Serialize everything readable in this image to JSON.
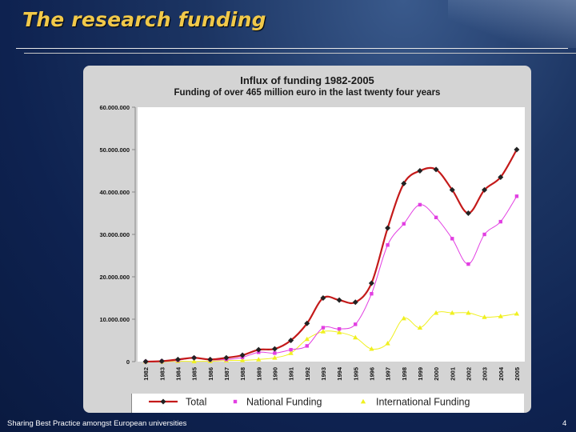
{
  "slide": {
    "title": "The research funding",
    "footer_text": "Sharing Best Practice amongst European universities",
    "page_number": "4"
  },
  "colors": {
    "title": "#f1c94a",
    "total": "#c41a1a",
    "national": "#e23fe2",
    "international": "#f0f020",
    "marker_total": "#222222"
  },
  "chart_data": {
    "type": "line",
    "title": "Influx of funding 1982-2005",
    "subtitle": "Funding  of over 465 million euro in the last twenty four years",
    "ylim": [
      0,
      60000000
    ],
    "yticks": [
      "0",
      "10.000.000",
      "20.000.000",
      "30.000.000",
      "40.000.000",
      "50.000.000",
      "60.000.000"
    ],
    "ytick_values": [
      0,
      10000000,
      20000000,
      30000000,
      40000000,
      50000000,
      60000000
    ],
    "categories": [
      "1982",
      "1983",
      "1984",
      "1985",
      "1986",
      "1987",
      "1988",
      "1989",
      "1990",
      "1991",
      "1992",
      "1993",
      "1994",
      "1995",
      "1996",
      "1997",
      "1998",
      "1999",
      "2000",
      "2001",
      "2002",
      "2003",
      "2004",
      "2005"
    ],
    "series": [
      {
        "name": "Total",
        "values": [
          0,
          100000,
          500000,
          900000,
          500000,
          900000,
          1500000,
          2800000,
          3000000,
          5000000,
          9000000,
          15000000,
          14500000,
          14000000,
          18500000,
          31500000,
          42000000,
          45000000,
          45300000,
          40500000,
          35000000,
          40500000,
          43500000,
          50000000
        ]
      },
      {
        "name": "National Funding",
        "values": [
          0,
          100000,
          300000,
          900000,
          400000,
          500000,
          1000000,
          2200000,
          2000000,
          2800000,
          3700000,
          8000000,
          7700000,
          8800000,
          16000000,
          27500000,
          32500000,
          37000000,
          34000000,
          29000000,
          23000000,
          30000000,
          33000000,
          39000000
        ]
      },
      {
        "name": "International Funding",
        "values": [
          0,
          0,
          100000,
          50000,
          100000,
          250000,
          300000,
          500000,
          900000,
          2000000,
          5300000,
          7100000,
          6900000,
          5700000,
          3000000,
          4300000,
          10200000,
          8000000,
          11500000,
          11500000,
          11500000,
          10500000,
          10700000,
          11300000
        ]
      }
    ]
  }
}
